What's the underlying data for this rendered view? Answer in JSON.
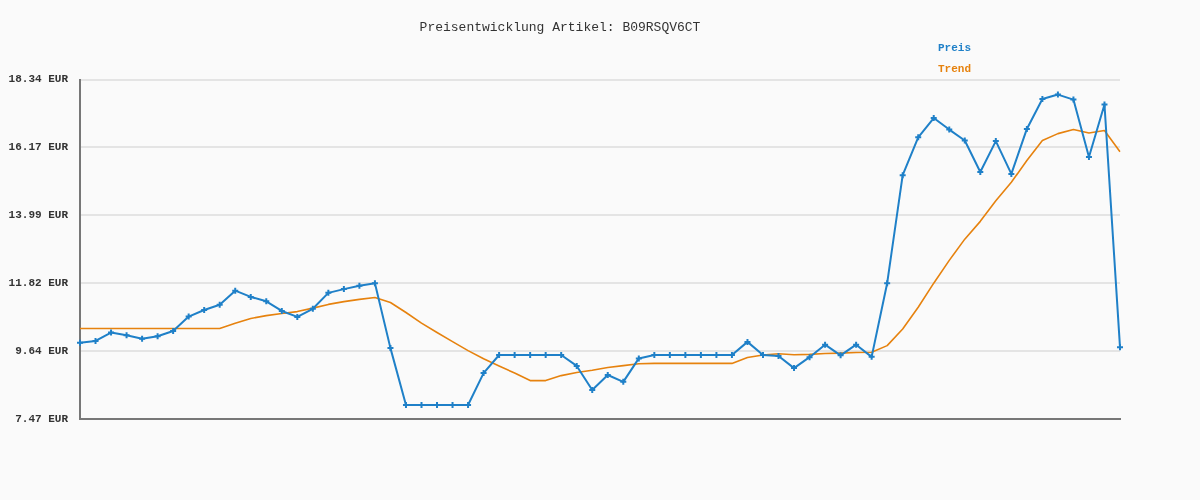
{
  "chart_data": {
    "type": "line",
    "title": "Preisentwicklung Artikel: B09RSQV6CT",
    "categories": [
      null,
      null,
      null,
      null,
      null,
      null,
      null,
      null,
      null,
      null,
      null,
      null,
      null,
      null,
      null,
      null,
      null,
      null,
      null,
      null,
      null,
      null,
      null,
      null,
      null,
      null,
      null,
      null,
      null,
      null,
      null,
      null,
      null,
      null,
      null,
      null,
      null,
      null,
      null,
      null,
      null,
      null,
      null,
      null,
      null,
      null,
      null,
      null,
      null,
      null,
      null,
      null,
      null,
      null,
      null,
      null,
      null,
      null,
      null,
      null,
      null,
      null,
      null,
      null,
      null,
      null,
      null,
      null
    ],
    "series": [
      {
        "name": "Preis",
        "color": "#1f80c8",
        "marker": "cross",
        "values": [
          9.91,
          9.97,
          10.24,
          10.15,
          10.04,
          10.12,
          10.29,
          10.75,
          10.96,
          11.13,
          11.58,
          11.38,
          11.24,
          10.93,
          10.74,
          11.0,
          11.51,
          11.63,
          11.74,
          11.82,
          9.74,
          7.92,
          7.92,
          7.92,
          7.92,
          7.92,
          8.94,
          9.52,
          9.52,
          9.52,
          9.52,
          9.52,
          9.17,
          8.4,
          8.88,
          8.66,
          9.41,
          9.52,
          9.52,
          9.52,
          9.52,
          9.52,
          9.52,
          9.94,
          9.52,
          9.49,
          9.1,
          9.45,
          9.85,
          9.51,
          9.85,
          9.46,
          11.82,
          15.28,
          16.49,
          17.11,
          16.74,
          16.39,
          15.38,
          16.37,
          15.32,
          16.76,
          17.72,
          17.86,
          17.7,
          15.86,
          17.54,
          9.77
        ]
      },
      {
        "name": "Trend",
        "color": "#e6820e",
        "marker": "none",
        "values": [
          10.37,
          10.37,
          10.37,
          10.37,
          10.37,
          10.37,
          10.37,
          10.37,
          10.37,
          10.37,
          10.54,
          10.69,
          10.78,
          10.85,
          10.91,
          11.02,
          11.14,
          11.23,
          11.3,
          11.36,
          11.2,
          10.88,
          10.54,
          10.24,
          9.95,
          9.66,
          9.4,
          9.17,
          8.94,
          8.7,
          8.7,
          8.86,
          8.96,
          9.03,
          9.12,
          9.18,
          9.24,
          9.25,
          9.25,
          9.25,
          9.25,
          9.25,
          9.25,
          9.44,
          9.52,
          9.56,
          9.53,
          9.54,
          9.57,
          9.58,
          9.6,
          9.61,
          9.82,
          10.35,
          11.05,
          11.82,
          12.55,
          13.23,
          13.8,
          14.46,
          15.05,
          15.75,
          16.39,
          16.61,
          16.74,
          16.63,
          16.71,
          16.03
        ]
      }
    ],
    "ylim": [
      7.47,
      18.34
    ],
    "yticks": [
      {
        "value": 7.47,
        "label": "7.47 EUR"
      },
      {
        "value": 9.64,
        "label": "9.64 EUR"
      },
      {
        "value": 11.82,
        "label": "11.82 EUR"
      },
      {
        "value": 13.99,
        "label": "13.99 EUR"
      },
      {
        "value": 16.17,
        "label": "16.17 EUR"
      },
      {
        "value": 18.34,
        "label": "18.34 EUR"
      }
    ],
    "grid": "y",
    "legend": "top right",
    "tick_labels": "y"
  }
}
